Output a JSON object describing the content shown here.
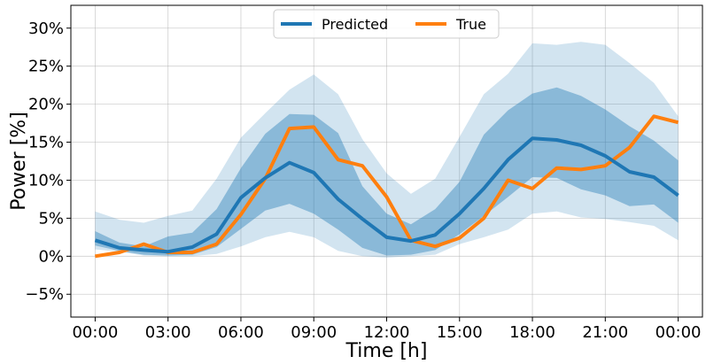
{
  "chart_data": {
    "type": "line",
    "xlabel": "Time [h]",
    "ylabel": "Power [%]",
    "ylim": [
      -8,
      33
    ],
    "xlim": [
      -1,
      25
    ],
    "grid": true,
    "legend_placement": "top-center",
    "x": [
      0,
      1,
      2,
      3,
      4,
      5,
      6,
      7,
      8,
      9,
      10,
      11,
      12,
      13,
      14,
      15,
      16,
      17,
      18,
      19,
      20,
      21,
      22,
      23,
      24
    ],
    "x_ticks": [
      0,
      3,
      6,
      9,
      12,
      15,
      18,
      21,
      24
    ],
    "x_tick_labels": [
      "00:00",
      "03:00",
      "06:00",
      "09:00",
      "12:00",
      "15:00",
      "18:00",
      "21:00",
      "00:00"
    ],
    "y_ticks": [
      -5,
      0,
      5,
      10,
      15,
      20,
      25,
      30
    ],
    "y_tick_labels": [
      "−5%",
      "0%",
      "5%",
      "10%",
      "15%",
      "20%",
      "25%",
      "30%"
    ],
    "series": [
      {
        "name": "Predicted",
        "color": "#1f77b4",
        "values": [
          2.1,
          1.1,
          0.8,
          0.6,
          1.2,
          2.9,
          7.7,
          10.3,
          12.3,
          11.0,
          7.5,
          4.9,
          2.5,
          2.0,
          2.8,
          5.6,
          8.9,
          12.7,
          15.5,
          15.3,
          14.6,
          13.2,
          11.1,
          10.4,
          8.0
        ]
      },
      {
        "name": "True",
        "color": "#ff7f0e",
        "values": [
          0.0,
          0.5,
          1.6,
          0.5,
          0.5,
          1.6,
          5.5,
          10.2,
          16.8,
          17.0,
          12.7,
          11.9,
          7.8,
          2.1,
          1.3,
          2.4,
          5.0,
          10.0,
          8.9,
          11.6,
          11.4,
          11.9,
          14.3,
          18.4,
          17.6
        ]
      }
    ],
    "bands": [
      {
        "color": "#1f77b4",
        "opacity": 0.2,
        "lower": [
          0.9,
          0.6,
          0.1,
          0.0,
          0.0,
          0.3,
          1.3,
          2.5,
          3.2,
          2.5,
          0.7,
          0.0,
          -0.2,
          0.0,
          0.2,
          1.6,
          2.5,
          3.5,
          5.6,
          5.9,
          5.1,
          4.9,
          4.5,
          4.0,
          2.1
        ],
        "upper": [
          5.9,
          4.8,
          4.4,
          5.3,
          6.0,
          10.2,
          15.6,
          18.8,
          21.9,
          23.9,
          21.3,
          15.4,
          10.9,
          8.2,
          10.2,
          15.7,
          21.3,
          24.0,
          28.0,
          27.8,
          28.2,
          27.8,
          25.4,
          22.8,
          18.4
        ]
      },
      {
        "color": "#1f77b4",
        "opacity": 0.4,
        "lower": [
          1.4,
          0.7,
          0.2,
          0.1,
          0.2,
          1.2,
          3.6,
          6.0,
          6.9,
          5.6,
          3.5,
          1.1,
          0.1,
          0.2,
          0.8,
          2.9,
          5.3,
          7.8,
          10.4,
          10.3,
          8.8,
          8.0,
          6.6,
          6.8,
          4.4
        ],
        "upper": [
          3.3,
          1.8,
          1.3,
          2.6,
          3.1,
          6.2,
          11.6,
          16.1,
          18.7,
          18.6,
          16.2,
          9.2,
          5.6,
          4.2,
          6.2,
          9.8,
          16.0,
          19.2,
          21.4,
          22.2,
          21.1,
          19.3,
          17.1,
          15.2,
          12.6
        ]
      }
    ]
  }
}
